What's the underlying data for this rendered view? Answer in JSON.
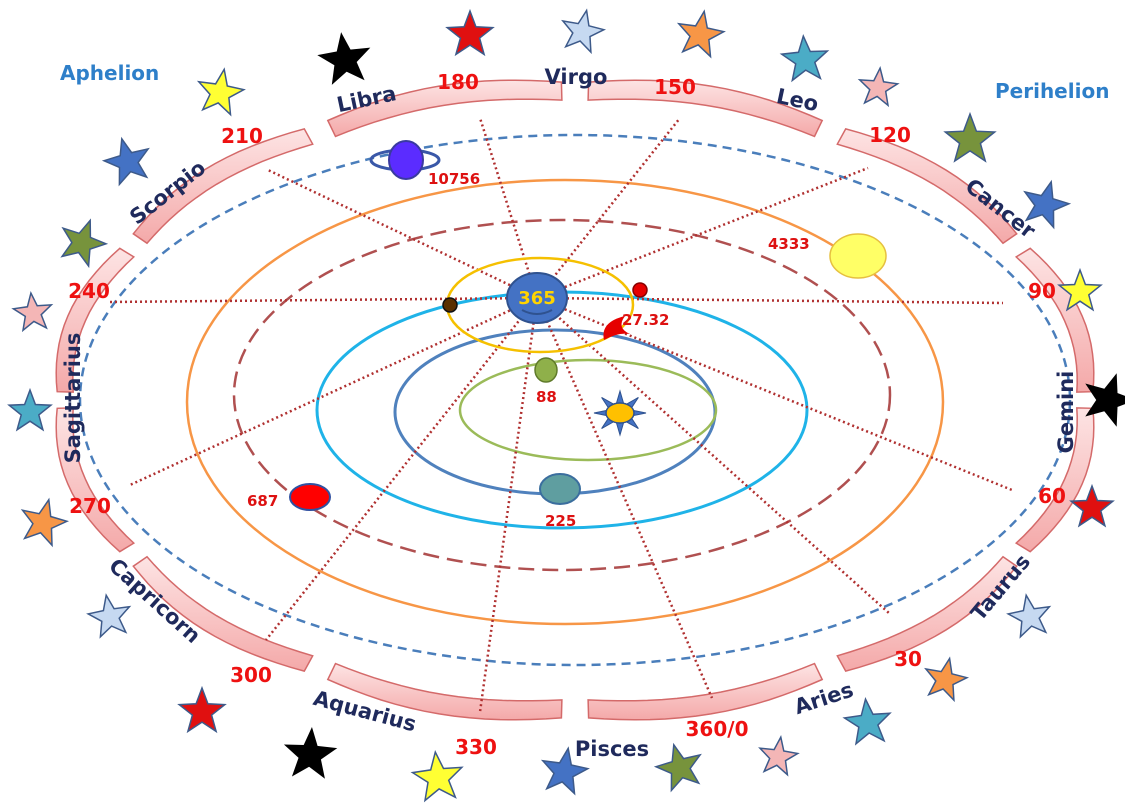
{
  "corner_labels": {
    "aphelion": "Aphelion",
    "perihelion": "Perihelion"
  },
  "signs": [
    "Libra",
    "Virgo",
    "Leo",
    "Cancer",
    "Gemini",
    "Taurus",
    "Aries",
    "Pisces",
    "Aquarius",
    "Capricorn",
    "Sagittarius",
    "Scorpio"
  ],
  "degrees": [
    "180",
    "150",
    "120",
    "90",
    "60",
    "30",
    "360/0",
    "330",
    "300",
    "270",
    "240",
    "210"
  ],
  "periods": {
    "earth": "365",
    "moon": "27.32",
    "mercury": "88",
    "venus": "225",
    "mars": "687",
    "jupiter": "4333",
    "saturn": "10756"
  },
  "colors": {
    "sun": "#ffc000",
    "earth": "#4472c4",
    "moon": "#e60000",
    "mercury": "#8fb04a",
    "venus": "#5f9ea0",
    "mars": "#ff0000",
    "jupiter": "#ffff66",
    "saturn": "#5b2cff",
    "orbit_mercury": "#9bbb59",
    "orbit_venus": "#4f81bd",
    "orbit_earth": "#1fb3e8",
    "orbit_mars": "#b05050",
    "orbit_jupiter": "#f79646",
    "orbit_saturn": "#4a7ebb",
    "moon_orbit": "#f5c000",
    "zodiac_band": "#f6c0c0"
  },
  "icons": [
    "sun-icon",
    "earth-icon",
    "moon-icon",
    "planet-icon",
    "star-icon"
  ]
}
